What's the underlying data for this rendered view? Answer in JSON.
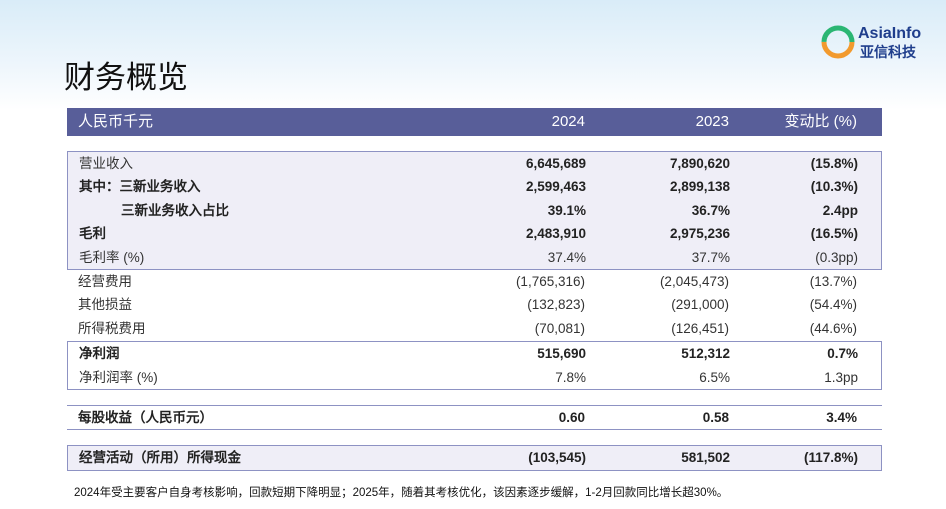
{
  "header": {
    "title": "财务概览",
    "logo_name": "AsiaInfo",
    "logo_cn": "亚信科技"
  },
  "table": {
    "columns": [
      "人民币千元",
      "2024",
      "2023",
      "变动比 (%)"
    ],
    "sections": [
      {
        "style": "box",
        "rows": [
          {
            "cells": [
              "营业收入",
              "6,645,689",
              "7,890,620",
              "(15.8%)"
            ],
            "bold": [
              false,
              true,
              true,
              true
            ]
          },
          {
            "cells": [
              "其中：三新业务收入",
              "2,599,463",
              "2,899,138",
              "(10.3%)"
            ],
            "bold": [
              true,
              true,
              true,
              true
            ]
          },
          {
            "cells": [
              "三新业务收入占比",
              "39.1%",
              "36.7%",
              "2.4pp"
            ],
            "bold": [
              true,
              true,
              true,
              true
            ],
            "indent": true
          },
          {
            "cells": [
              "毛利",
              "2,483,910",
              "2,975,236",
              "(16.5%)"
            ],
            "bold": [
              true,
              true,
              true,
              true
            ]
          },
          {
            "cells": [
              "毛利率 (%)",
              "37.4%",
              "37.7%",
              "(0.3pp)"
            ],
            "bold": [
              false,
              false,
              false,
              false
            ]
          }
        ]
      },
      {
        "style": "plain",
        "rows": [
          {
            "cells": [
              "经营费用",
              "(1,765,316)",
              "(2,045,473)",
              "(13.7%)"
            ],
            "bold": [
              false,
              false,
              false,
              false
            ]
          },
          {
            "cells": [
              "其他损益",
              "(132,823)",
              "(291,000)",
              "(54.4%)"
            ],
            "bold": [
              false,
              false,
              false,
              false
            ]
          },
          {
            "cells": [
              "所得税费用",
              "(70,081)",
              "(126,451)",
              "(44.6%)"
            ],
            "bold": [
              false,
              false,
              false,
              false
            ]
          }
        ]
      },
      {
        "style": "outline",
        "rows": [
          {
            "cells": [
              "净利润",
              "515,690",
              "512,312",
              "0.7%"
            ],
            "bold": [
              true,
              true,
              true,
              true
            ]
          },
          {
            "cells": [
              "净利润率 (%)",
              "7.8%",
              "6.5%",
              "1.3pp"
            ],
            "bold": [
              false,
              false,
              false,
              false
            ]
          }
        ]
      },
      {
        "style": "rule",
        "rows": [
          {
            "cells": [
              "每股收益（人民币元）",
              "0.60",
              "0.58",
              "3.4%"
            ],
            "bold": [
              true,
              true,
              true,
              true
            ]
          }
        ]
      },
      {
        "style": "box",
        "rows": [
          {
            "cells": [
              "经营活动（所用）所得现金",
              "(103,545)",
              "581,502",
              "(117.8%)"
            ],
            "bold": [
              true,
              true,
              true,
              true
            ]
          }
        ]
      }
    ]
  },
  "footnote": "2024年受主要客户自身考核影响，回款短期下降明显；2025年，随着其考核优化，该因素逐步缓解，1-2月回款同比增长超30%。"
}
